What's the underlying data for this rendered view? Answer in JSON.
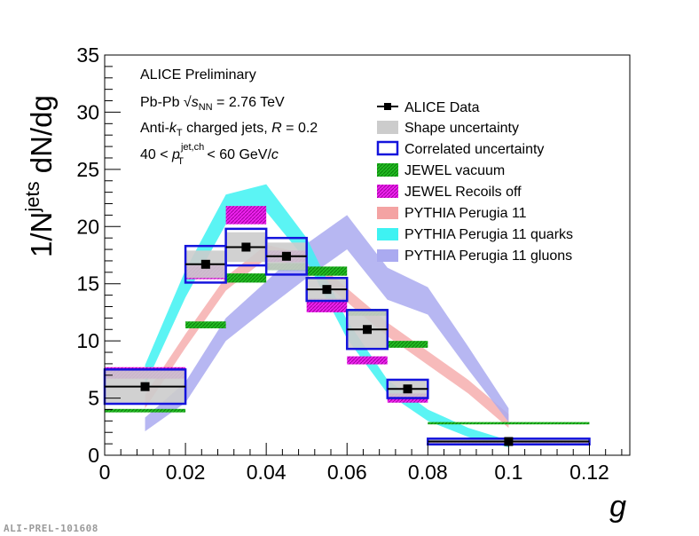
{
  "chart_data": {
    "type": "scatter",
    "title": "",
    "xlabel": "g",
    "ylabel_main": "1/N",
    "ylabel_sup": "jets",
    "ylabel_tail": " dN/dg",
    "xlim": [
      0,
      0.13
    ],
    "ylim": [
      0,
      35
    ],
    "xticks": [
      0,
      0.02,
      0.04,
      0.06,
      0.08,
      0.1,
      0.12
    ],
    "xtick_labels": [
      "0",
      "0.02",
      "0.04",
      "0.06",
      "0.08",
      "0.1",
      "0.12"
    ],
    "yticks": [
      0,
      5,
      10,
      15,
      20,
      25,
      30,
      35
    ],
    "ytick_labels": [
      "0",
      "5",
      "10",
      "15",
      "20",
      "25",
      "30",
      "35"
    ],
    "grid": false,
    "legend_position": "top-right",
    "annotations": {
      "line1": "ALICE Preliminary",
      "line2_a": "Pb-Pb ",
      "line2_sqrt": "√",
      "line2_s": "s",
      "line2_sub": "NN",
      "line2_b": " = 2.76 TeV",
      "line3_a": "Anti-",
      "line3_k": "k",
      "line3_ksub": "T",
      "line3_b": " charged jets, ",
      "line3_R": "R",
      "line3_c": " = 0.2",
      "line4_a": "40 < ",
      "line4_p": "p",
      "line4_sup": "jet,ch",
      "line4_sub": "T",
      "line4_b": " < 60 GeV/",
      "line4_c": "c"
    },
    "legend": [
      {
        "label": "ALICE Data",
        "style": "marker"
      },
      {
        "label": "Shape uncertainty",
        "style": "gray-fill"
      },
      {
        "label": "Correlated uncertainty",
        "style": "blue-box"
      },
      {
        "label": "JEWEL vacuum",
        "style": "green-hatch"
      },
      {
        "label": "JEWEL Recoils off",
        "style": "magenta-hatch"
      },
      {
        "label": "PYTHIA Perugia 11",
        "style": "pink-band"
      },
      {
        "label": "PYTHIA Perugia 11 quarks",
        "style": "cyan-band"
      },
      {
        "label": "PYTHIA Perugia 11 gluons",
        "style": "lavender-band"
      }
    ],
    "series": [
      {
        "name": "ALICE Data",
        "x": [
          0.01,
          0.025,
          0.035,
          0.045,
          0.055,
          0.065,
          0.075,
          0.1
        ],
        "xerr": [
          0.01,
          0.005,
          0.005,
          0.005,
          0.005,
          0.005,
          0.005,
          0.02
        ],
        "y": [
          6.0,
          16.7,
          18.2,
          17.4,
          14.5,
          11.0,
          5.8,
          1.2
        ],
        "shape_unc": [
          1.5,
          1.2,
          1.3,
          1.2,
          1.0,
          1.7,
          0.7,
          0.25
        ],
        "corr_unc": [
          1.5,
          1.6,
          1.6,
          1.6,
          1.0,
          1.7,
          0.8,
          0.25
        ]
      },
      {
        "name": "JEWEL vacuum",
        "x": [
          0.01,
          0.025,
          0.035,
          0.045,
          0.055,
          0.065,
          0.075,
          0.1
        ],
        "xerr": [
          0.01,
          0.005,
          0.005,
          0.005,
          0.005,
          0.005,
          0.005,
          0.02
        ],
        "y": [
          3.9,
          11.4,
          15.5,
          16.5,
          16.1,
          12.5,
          9.7,
          2.8
        ],
        "err": [
          0.15,
          0.3,
          0.4,
          0.3,
          0.4,
          0.3,
          0.3,
          0.1
        ]
      },
      {
        "name": "JEWEL Recoils off",
        "x": [
          0.01,
          0.025,
          0.035,
          0.045,
          0.055,
          0.065,
          0.075,
          0.1
        ],
        "xerr": [
          0.01,
          0.005,
          0.005,
          0.005,
          0.005,
          0.005,
          0.005,
          0.02
        ],
        "y": [
          7.2,
          16.0,
          21.0,
          17.4,
          13.1,
          8.3,
          5.0,
          1.1
        ],
        "err": [
          0.5,
          0.6,
          0.8,
          0.5,
          0.6,
          0.35,
          0.4,
          0.12
        ]
      },
      {
        "name": "PYTHIA Perugia 11",
        "x": [
          0.01,
          0.02,
          0.03,
          0.04,
          0.05,
          0.06,
          0.07,
          0.08,
          0.09,
          0.1
        ],
        "y": [
          4.7,
          10.0,
          15.0,
          17.8,
          17.0,
          14.0,
          11.0,
          8.5,
          6.0,
          3.0
        ],
        "err": [
          0.6,
          0.6,
          0.6,
          0.6,
          0.6,
          0.6,
          0.6,
          0.6,
          0.6,
          0.6
        ]
      },
      {
        "name": "PYTHIA Perugia 11 quarks",
        "x": [
          0.01,
          0.02,
          0.03,
          0.04,
          0.05,
          0.06,
          0.07,
          0.08,
          0.09,
          0.1
        ],
        "y": [
          7.0,
          15.0,
          21.5,
          22.5,
          18.0,
          11.0,
          6.0,
          3.5,
          2.0,
          1.0
        ],
        "err": [
          0.9,
          1.2,
          1.3,
          1.2,
          1.0,
          0.8,
          0.6,
          0.5,
          0.4,
          0.3
        ]
      },
      {
        "name": "PYTHIA Perugia 11 gluons",
        "x": [
          0.01,
          0.02,
          0.03,
          0.04,
          0.05,
          0.06,
          0.07,
          0.08,
          0.09,
          0.1
        ],
        "y": [
          2.7,
          5.5,
          11.0,
          14.0,
          17.0,
          19.5,
          15.0,
          13.5,
          8.5,
          3.5
        ],
        "err": [
          0.6,
          0.9,
          1.0,
          1.2,
          1.5,
          1.5,
          1.4,
          1.2,
          1.0,
          0.6
        ]
      }
    ],
    "colors": {
      "data": "#000000",
      "shape_unc": "#cccccc",
      "corr_unc": "#1414dc",
      "jewel_vacuum": "#22bb22",
      "jewel_recoils": "#ee22ee",
      "pythia": "#f4a3a3",
      "pythia_quarks": "#3ef2f2",
      "pythia_gluons": "#aaaaf0"
    }
  },
  "footer": "ALI-PREL-101608"
}
